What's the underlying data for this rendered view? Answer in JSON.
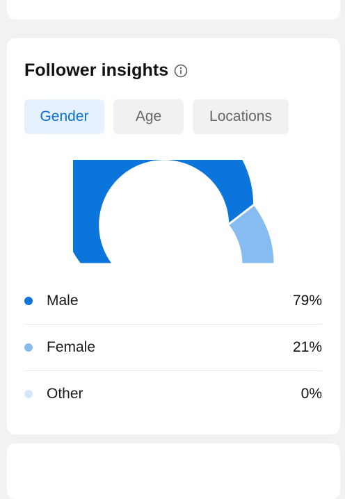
{
  "insights": {
    "title": "Follower insights",
    "tabs": [
      {
        "label": "Gender",
        "active": true
      },
      {
        "label": "Age",
        "active": false
      },
      {
        "label": "Locations",
        "active": false
      }
    ]
  },
  "colors": {
    "male": "#0b75db",
    "female": "#86bcef",
    "other": "#d5e7f8",
    "accent": "#0a6fd6"
  },
  "icons": {
    "info": "info-circle-icon"
  },
  "legend": [
    {
      "label": "Male",
      "value": "79%"
    },
    {
      "label": "Female",
      "value": "21%"
    },
    {
      "label": "Other",
      "value": "0%"
    }
  ],
  "chart_data": {
    "type": "pie",
    "subtype": "semi-donut",
    "categories": [
      "Male",
      "Female",
      "Other"
    ],
    "values": [
      79,
      21,
      0
    ],
    "unit": "%"
  }
}
